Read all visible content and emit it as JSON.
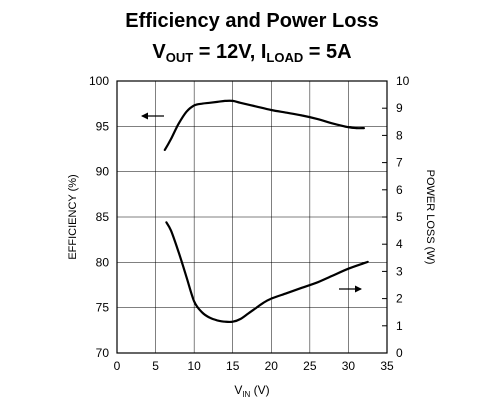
{
  "chart_data": {
    "type": "line",
    "title": {
      "line1": "Efficiency and Power Loss",
      "line2": {
        "v": "V",
        "v_sub": "OUT",
        "mid": " = 12V, I",
        "i_sub": "LOAD",
        "end": " = 5A"
      }
    },
    "xlabel": {
      "main": "V",
      "sub": "IN",
      "unit": " (V)"
    },
    "ylabel_left": "EFFICIENCY (%)",
    "ylabel_right": "POWER LOSS (W)",
    "xlim": [
      0,
      35
    ],
    "ylim_left": [
      70,
      100
    ],
    "ylim_right": [
      0,
      10
    ],
    "x_ticks": [
      "0",
      "5",
      "10",
      "15",
      "20",
      "25",
      "30",
      "35"
    ],
    "y_left_ticks": [
      "70",
      "75",
      "80",
      "85",
      "90",
      "95",
      "100"
    ],
    "y_right_ticks": [
      "0",
      "1",
      "2",
      "3",
      "4",
      "5",
      "6",
      "7",
      "8",
      "9",
      "10"
    ],
    "grid": true,
    "series": [
      {
        "axis": "left",
        "x": [
          6.2,
          7,
          8,
          9,
          10,
          11,
          12,
          13,
          14,
          15,
          16,
          18,
          20,
          22,
          24,
          26,
          28,
          30,
          31,
          32
        ],
        "y": [
          92.4,
          93.6,
          95.3,
          96.6,
          97.3,
          97.5,
          97.6,
          97.7,
          97.8,
          97.8,
          97.6,
          97.2,
          96.8,
          96.5,
          96.2,
          95.8,
          95.3,
          94.9,
          94.8,
          94.8
        ]
      },
      {
        "axis": "right",
        "x": [
          6.4,
          7,
          8,
          9,
          10,
          11,
          12,
          13,
          14,
          15,
          16,
          17,
          18,
          19,
          20,
          22,
          24,
          26,
          28,
          30,
          32,
          32.5
        ],
        "y": [
          4.8,
          4.5,
          3.7,
          2.8,
          1.9,
          1.5,
          1.3,
          1.2,
          1.15,
          1.15,
          1.25,
          1.45,
          1.65,
          1.85,
          2.0,
          2.2,
          2.4,
          2.6,
          2.85,
          3.1,
          3.3,
          3.35
        ]
      }
    ]
  }
}
